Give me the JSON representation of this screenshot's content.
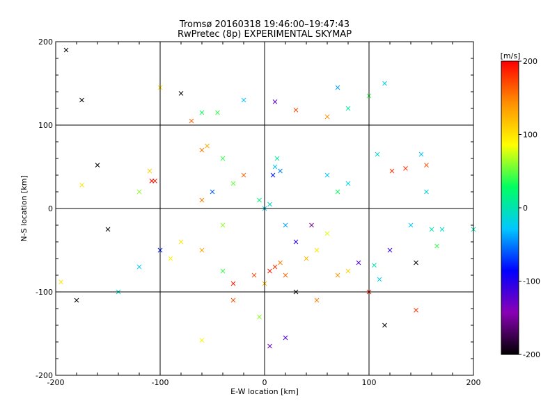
{
  "chart_data": {
    "type": "scatter",
    "title": "Tromsø 20160318 19:46:00–19:47:43",
    "subtitle": "RwPretec (8p) EXPERIMENTAL SKYMAP",
    "xlabel": "E-W location [km]",
    "ylabel": "N-S location [km]",
    "xlim": [
      -200,
      200
    ],
    "ylim": [
      -200,
      200
    ],
    "xticks": [
      "-200",
      "-100",
      "0",
      "100",
      "200"
    ],
    "yticks": [
      "-200",
      "-100",
      "0",
      "100",
      "200"
    ],
    "grid": true,
    "colorbar": {
      "label": "[m/s]",
      "min": -200,
      "max": 200,
      "ticks": [
        "-200",
        "-100",
        "0",
        "100",
        "200"
      ],
      "palette": [
        "#000000",
        "#8a00b5",
        "#0000ff",
        "#00c8ff",
        "#00ff60",
        "#ffff00",
        "#ff9000",
        "#ff0000"
      ]
    },
    "points": [
      {
        "x": 0,
        "y": 0,
        "v": -20
      },
      {
        "x": 5,
        "y": 5,
        "v": -10
      },
      {
        "x": 10,
        "y": 50,
        "v": -30
      },
      {
        "x": 12,
        "y": 60,
        "v": 10
      },
      {
        "x": 15,
        "y": 45,
        "v": -50
      },
      {
        "x": 8,
        "y": 40,
        "v": -80
      },
      {
        "x": -5,
        "y": 10,
        "v": 20
      },
      {
        "x": 20,
        "y": -20,
        "v": -40
      },
      {
        "x": 10,
        "y": -70,
        "v": 180
      },
      {
        "x": 15,
        "y": -65,
        "v": 150
      },
      {
        "x": 5,
        "y": -75,
        "v": 190
      },
      {
        "x": 20,
        "y": -80,
        "v": 160
      },
      {
        "x": 0,
        "y": -90,
        "v": 120
      },
      {
        "x": -10,
        "y": -80,
        "v": 170
      },
      {
        "x": -30,
        "y": -90,
        "v": 190
      },
      {
        "x": 30,
        "y": -40,
        "v": -100
      },
      {
        "x": 60,
        "y": -30,
        "v": 80
      },
      {
        "x": 70,
        "y": -80,
        "v": 140
      },
      {
        "x": 80,
        "y": -75,
        "v": 110
      },
      {
        "x": 60,
        "y": 40,
        "v": -30
      },
      {
        "x": 80,
        "y": 30,
        "v": -20
      },
      {
        "x": 70,
        "y": 20,
        "v": 30
      },
      {
        "x": -40,
        "y": 60,
        "v": 40
      },
      {
        "x": -60,
        "y": 70,
        "v": 150
      },
      {
        "x": -55,
        "y": 75,
        "v": 130
      },
      {
        "x": -20,
        "y": 40,
        "v": 160
      },
      {
        "x": -30,
        "y": 30,
        "v": 50
      },
      {
        "x": -50,
        "y": 20,
        "v": -60
      },
      {
        "x": -60,
        "y": 10,
        "v": 150
      },
      {
        "x": -40,
        "y": -20,
        "v": 60
      },
      {
        "x": -80,
        "y": -40,
        "v": 100
      },
      {
        "x": -90,
        "y": -60,
        "v": 90
      },
      {
        "x": -60,
        "y": -50,
        "v": 130
      },
      {
        "x": -40,
        "y": -75,
        "v": 40
      },
      {
        "x": 40,
        "y": -60,
        "v": 120
      },
      {
        "x": 50,
        "y": -50,
        "v": 100
      },
      {
        "x": 45,
        "y": -20,
        "v": -150
      },
      {
        "x": -108,
        "y": 33,
        "v": 200
      },
      {
        "x": -105,
        "y": 33,
        "v": 190
      },
      {
        "x": -110,
        "y": 45,
        "v": 110
      },
      {
        "x": -120,
        "y": 20,
        "v": 60
      },
      {
        "x": -100,
        "y": -50,
        "v": -80
      },
      {
        "x": -120,
        "y": -70,
        "v": -30
      },
      {
        "x": -140,
        "y": -100,
        "v": -10
      },
      {
        "x": -160,
        "y": 52,
        "v": -200
      },
      {
        "x": -150,
        "y": -25,
        "v": -200
      },
      {
        "x": -180,
        "y": -110,
        "v": -200
      },
      {
        "x": -175,
        "y": 28,
        "v": 100
      },
      {
        "x": -190,
        "y": 190,
        "v": -200
      },
      {
        "x": -175,
        "y": 130,
        "v": -200
      },
      {
        "x": -80,
        "y": 138,
        "v": -200
      },
      {
        "x": -100,
        "y": 145,
        "v": 100
      },
      {
        "x": -70,
        "y": 105,
        "v": 160
      },
      {
        "x": -60,
        "y": 115,
        "v": 30
      },
      {
        "x": -45,
        "y": 115,
        "v": 40
      },
      {
        "x": -20,
        "y": 130,
        "v": -30
      },
      {
        "x": 10,
        "y": 128,
        "v": -120
      },
      {
        "x": 30,
        "y": 118,
        "v": 170
      },
      {
        "x": 60,
        "y": 110,
        "v": 140
      },
      {
        "x": 80,
        "y": 120,
        "v": 10
      },
      {
        "x": 100,
        "y": 135,
        "v": 40
      },
      {
        "x": 115,
        "y": 150,
        "v": -20
      },
      {
        "x": 70,
        "y": 145,
        "v": -40
      },
      {
        "x": 108,
        "y": 65,
        "v": -10
      },
      {
        "x": 122,
        "y": 45,
        "v": 180
      },
      {
        "x": 135,
        "y": 48,
        "v": 180
      },
      {
        "x": 150,
        "y": 65,
        "v": -30
      },
      {
        "x": 155,
        "y": 52,
        "v": 170
      },
      {
        "x": 155,
        "y": 20,
        "v": -20
      },
      {
        "x": 140,
        "y": -20,
        "v": -30
      },
      {
        "x": 160,
        "y": -25,
        "v": 0
      },
      {
        "x": 170,
        "y": -25,
        "v": -10
      },
      {
        "x": 165,
        "y": -45,
        "v": 40
      },
      {
        "x": 120,
        "y": -50,
        "v": -110
      },
      {
        "x": 145,
        "y": -65,
        "v": -200
      },
      {
        "x": 110,
        "y": -85,
        "v": -20
      },
      {
        "x": 100,
        "y": -100,
        "v": 190
      },
      {
        "x": 115,
        "y": -140,
        "v": -200
      },
      {
        "x": 145,
        "y": -122,
        "v": 180
      },
      {
        "x": 90,
        "y": -65,
        "v": -120
      },
      {
        "x": 105,
        "y": -68,
        "v": 0
      },
      {
        "x": 20,
        "y": -155,
        "v": -120
      },
      {
        "x": 5,
        "y": -165,
        "v": -130
      },
      {
        "x": -60,
        "y": -158,
        "v": 90
      },
      {
        "x": -5,
        "y": -130,
        "v": 60
      },
      {
        "x": -30,
        "y": -110,
        "v": 170
      },
      {
        "x": 30,
        "y": -100,
        "v": -200
      },
      {
        "x": 50,
        "y": -110,
        "v": 150
      },
      {
        "x": 200,
        "y": -25,
        "v": 0
      },
      {
        "x": -195,
        "y": -88,
        "v": 100
      }
    ]
  }
}
